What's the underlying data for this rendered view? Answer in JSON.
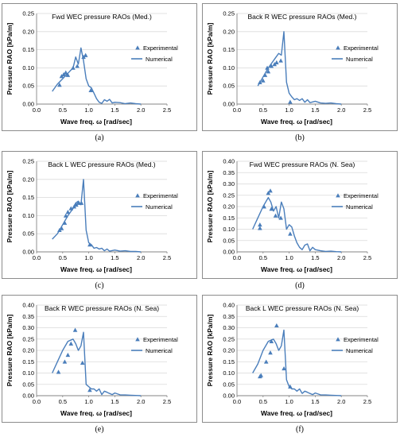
{
  "figure": {
    "colors": {
      "series": "#4a7ebb",
      "frame": "#8c8c8c",
      "grid": "#d9d9d9",
      "axis": "#868686"
    }
  },
  "chart_data": [
    {
      "type": "line",
      "caption": "(a)",
      "title": "Fwd WEC pressure RAOs  (Med.)",
      "xlabel": "Wave freq. ω [rad/sec]",
      "ylabel": "Pressure RAO [kPa/m]",
      "xlim": [
        0,
        2.5
      ],
      "ylim": [
        0,
        0.25
      ],
      "xticks": [
        "0.0",
        "0.5",
        "1.0",
        "1.5",
        "2.0",
        "2.5"
      ],
      "yticks": [
        "0.00",
        "0.05",
        "0.10",
        "0.15",
        "0.20",
        "0.25"
      ],
      "grid": true,
      "legend_position": "right",
      "series": [
        {
          "name": "Experimental",
          "kind": "scatter",
          "x": [
            0.44,
            0.48,
            0.52,
            0.56,
            0.6,
            0.7,
            0.78,
            0.9,
            0.94,
            1.04
          ],
          "y": [
            0.053,
            0.077,
            0.082,
            0.087,
            0.08,
            0.1,
            0.105,
            0.13,
            0.135,
            0.038
          ]
        },
        {
          "name": "Numerical",
          "kind": "line",
          "x": [
            0.3,
            0.4,
            0.5,
            0.6,
            0.7,
            0.75,
            0.8,
            0.85,
            0.9,
            0.95,
            1.0,
            1.05,
            1.1,
            1.15,
            1.2,
            1.25,
            1.3,
            1.35,
            1.4,
            1.45,
            1.5,
            1.6,
            1.7,
            1.8,
            1.9,
            2.0
          ],
          "y": [
            0.035,
            0.055,
            0.07,
            0.085,
            0.1,
            0.13,
            0.11,
            0.155,
            0.12,
            0.07,
            0.05,
            0.045,
            0.03,
            0.015,
            0.005,
            0.002,
            0.012,
            0.008,
            0.013,
            0.003,
            0.005,
            0.004,
            0.001,
            0.003,
            0.001,
            0.0
          ]
        }
      ]
    },
    {
      "type": "line",
      "caption": "(b)",
      "title": "Back R WEC pressure RAOs  (Med.)",
      "xlabel": "Wave freq. ω [rad/sec]",
      "ylabel": "Pressure RAO [kPa/m]",
      "xlim": [
        0,
        2.5
      ],
      "ylim": [
        0,
        0.25
      ],
      "xticks": [
        "0.0",
        "0.5",
        "1.0",
        "1.5",
        "2.0",
        "2.5"
      ],
      "yticks": [
        "0.00",
        "0.05",
        "0.10",
        "0.15",
        "0.20",
        "0.25"
      ],
      "grid": true,
      "legend_position": "right",
      "series": [
        {
          "name": "Experimental",
          "kind": "scatter",
          "x": [
            0.44,
            0.5,
            0.54,
            0.58,
            0.6,
            0.66,
            0.72,
            0.76,
            0.84,
            1.02
          ],
          "y": [
            0.06,
            0.065,
            0.08,
            0.1,
            0.09,
            0.105,
            0.11,
            0.115,
            0.12,
            0.006
          ]
        },
        {
          "name": "Numerical",
          "kind": "line",
          "x": [
            0.4,
            0.5,
            0.6,
            0.7,
            0.75,
            0.8,
            0.85,
            0.9,
            0.95,
            1.0,
            1.05,
            1.1,
            1.15,
            1.2,
            1.25,
            1.3,
            1.35,
            1.4,
            1.5,
            1.6,
            1.7,
            1.8,
            1.9,
            2.0
          ],
          "y": [
            0.05,
            0.075,
            0.1,
            0.12,
            0.13,
            0.14,
            0.135,
            0.2,
            0.06,
            0.03,
            0.02,
            0.012,
            0.015,
            0.01,
            0.015,
            0.005,
            0.012,
            0.004,
            0.008,
            0.003,
            0.002,
            0.003,
            0.001,
            0.0
          ]
        }
      ]
    },
    {
      "type": "line",
      "caption": "(c)",
      "title": "Back L WEC pressure RAOs  (Med.)",
      "xlabel": "Wave freq. ω [rad/sec]",
      "ylabel": "Pressure RAO [kPa/m]",
      "xlim": [
        0,
        2.5
      ],
      "ylim": [
        0,
        0.25
      ],
      "xticks": [
        "0.0",
        "0.5",
        "1.0",
        "1.5",
        "2.0",
        "2.5"
      ],
      "yticks": [
        "0.00",
        "0.05",
        "0.10",
        "0.15",
        "0.20",
        "0.25"
      ],
      "grid": true,
      "legend_position": "right",
      "series": [
        {
          "name": "Experimental",
          "kind": "scatter",
          "x": [
            0.44,
            0.48,
            0.54,
            0.56,
            0.6,
            0.66,
            0.72,
            0.76,
            0.8,
            0.86,
            1.02
          ],
          "y": [
            0.06,
            0.065,
            0.08,
            0.1,
            0.11,
            0.12,
            0.125,
            0.13,
            0.135,
            0.135,
            0.02
          ]
        },
        {
          "name": "Numerical",
          "kind": "line",
          "x": [
            0.3,
            0.4,
            0.5,
            0.6,
            0.7,
            0.75,
            0.8,
            0.85,
            0.9,
            0.95,
            1.0,
            1.05,
            1.1,
            1.15,
            1.2,
            1.25,
            1.3,
            1.35,
            1.4,
            1.5,
            1.6,
            1.7,
            1.8,
            1.9,
            2.0
          ],
          "y": [
            0.035,
            0.05,
            0.075,
            0.1,
            0.12,
            0.135,
            0.14,
            0.13,
            0.2,
            0.06,
            0.025,
            0.02,
            0.01,
            0.012,
            0.008,
            0.01,
            0.003,
            0.008,
            0.002,
            0.005,
            0.002,
            0.003,
            0.001,
            0.001,
            0.0
          ]
        }
      ]
    },
    {
      "type": "line",
      "caption": "(d)",
      "title": "Fwd WEC pressure RAOs  (N. Sea)",
      "xlabel": "Wave freq. ω [rad/sec]",
      "ylabel": "Pressure RAO [kPa/m]",
      "xlim": [
        0,
        2.5
      ],
      "ylim": [
        0,
        0.4
      ],
      "xticks": [
        "0.0",
        "0.5",
        "1.0",
        "1.5",
        "2.0",
        "2.5"
      ],
      "yticks": [
        "0.00",
        "0.05",
        "0.10",
        "0.15",
        "0.20",
        "0.25",
        "0.30",
        "0.35",
        "0.40"
      ],
      "grid": true,
      "legend_position": "right",
      "series": [
        {
          "name": "Experimental",
          "kind": "scatter",
          "x": [
            0.44,
            0.44,
            0.52,
            0.6,
            0.64,
            0.66,
            0.74,
            0.84,
            1.02
          ],
          "y": [
            0.105,
            0.12,
            0.2,
            0.26,
            0.27,
            0.19,
            0.16,
            0.15,
            0.08
          ]
        },
        {
          "name": "Numerical",
          "kind": "line",
          "x": [
            0.3,
            0.4,
            0.5,
            0.6,
            0.65,
            0.7,
            0.75,
            0.8,
            0.85,
            0.9,
            0.95,
            1.0,
            1.05,
            1.1,
            1.15,
            1.2,
            1.25,
            1.3,
            1.35,
            1.4,
            1.45,
            1.5,
            1.6,
            1.7,
            1.8,
            1.9,
            2.0
          ],
          "y": [
            0.1,
            0.15,
            0.2,
            0.24,
            0.22,
            0.18,
            0.2,
            0.15,
            0.22,
            0.19,
            0.1,
            0.12,
            0.11,
            0.07,
            0.04,
            0.02,
            0.01,
            0.03,
            0.035,
            0.005,
            0.02,
            0.01,
            0.005,
            0.002,
            0.003,
            0.001,
            0.0
          ]
        }
      ]
    },
    {
      "type": "line",
      "caption": "(e)",
      "title": "Back R WEC pressure RAOs  (N. Sea)",
      "xlabel": "Wave freq. ω [rad/sec]",
      "ylabel": "Pressure RAO [kPa/m]",
      "xlim": [
        0,
        2.5
      ],
      "ylim": [
        0,
        0.4
      ],
      "xticks": [
        "0.0",
        "0.5",
        "1.0",
        "1.5",
        "2.0",
        "2.5"
      ],
      "yticks": [
        "0.00",
        "0.05",
        "0.10",
        "0.15",
        "0.20",
        "0.25",
        "0.30",
        "0.35",
        "0.40"
      ],
      "grid": true,
      "legend_position": "right",
      "series": [
        {
          "name": "Experimental",
          "kind": "scatter",
          "x": [
            0.42,
            0.54,
            0.6,
            0.66,
            0.74,
            0.88,
            1.02
          ],
          "y": [
            0.105,
            0.15,
            0.18,
            0.23,
            0.29,
            0.145,
            0.025
          ]
        },
        {
          "name": "Numerical",
          "kind": "line",
          "x": [
            0.3,
            0.4,
            0.5,
            0.6,
            0.7,
            0.75,
            0.8,
            0.85,
            0.9,
            0.95,
            1.0,
            1.05,
            1.1,
            1.15,
            1.2,
            1.25,
            1.3,
            1.35,
            1.4,
            1.45,
            1.5,
            1.6,
            1.7,
            1.8,
            1.9,
            2.0
          ],
          "y": [
            0.1,
            0.15,
            0.2,
            0.24,
            0.25,
            0.23,
            0.2,
            0.22,
            0.28,
            0.05,
            0.04,
            0.03,
            0.03,
            0.02,
            0.03,
            0.005,
            0.02,
            0.015,
            0.01,
            0.005,
            0.012,
            0.004,
            0.003,
            0.002,
            0.001,
            0.0
          ]
        }
      ]
    },
    {
      "type": "line",
      "caption": "(f)",
      "title": "Back L WEC pressure RAOs  (N. Sea)",
      "xlabel": "Wave freq. ω [rad/sec]",
      "ylabel": "Pressure RAO [kPa/m]",
      "xlim": [
        0,
        2.5
      ],
      "ylim": [
        0,
        0.4
      ],
      "xticks": [
        "0.0",
        "0.5",
        "1.0",
        "1.5",
        "2.0",
        "2.5"
      ],
      "yticks": [
        "0.00",
        "0.05",
        "0.10",
        "0.15",
        "0.20",
        "0.25",
        "0.30",
        "0.35",
        "0.40"
      ],
      "grid": true,
      "legend_position": "right",
      "series": [
        {
          "name": "Experimental",
          "kind": "scatter",
          "x": [
            0.44,
            0.46,
            0.56,
            0.64,
            0.66,
            0.76,
            0.9,
            1.02
          ],
          "y": [
            0.085,
            0.09,
            0.15,
            0.19,
            0.24,
            0.31,
            0.12,
            0.04
          ]
        },
        {
          "name": "Numerical",
          "kind": "line",
          "x": [
            0.3,
            0.4,
            0.5,
            0.6,
            0.7,
            0.75,
            0.8,
            0.85,
            0.9,
            0.95,
            1.0,
            1.05,
            1.1,
            1.15,
            1.2,
            1.25,
            1.3,
            1.35,
            1.4,
            1.45,
            1.5,
            1.6,
            1.7,
            1.8,
            1.9,
            2.0
          ],
          "y": [
            0.1,
            0.14,
            0.2,
            0.24,
            0.25,
            0.23,
            0.2,
            0.22,
            0.29,
            0.07,
            0.04,
            0.03,
            0.03,
            0.02,
            0.03,
            0.01,
            0.02,
            0.015,
            0.01,
            0.005,
            0.012,
            0.004,
            0.003,
            0.002,
            0.001,
            0.0
          ]
        }
      ]
    }
  ]
}
